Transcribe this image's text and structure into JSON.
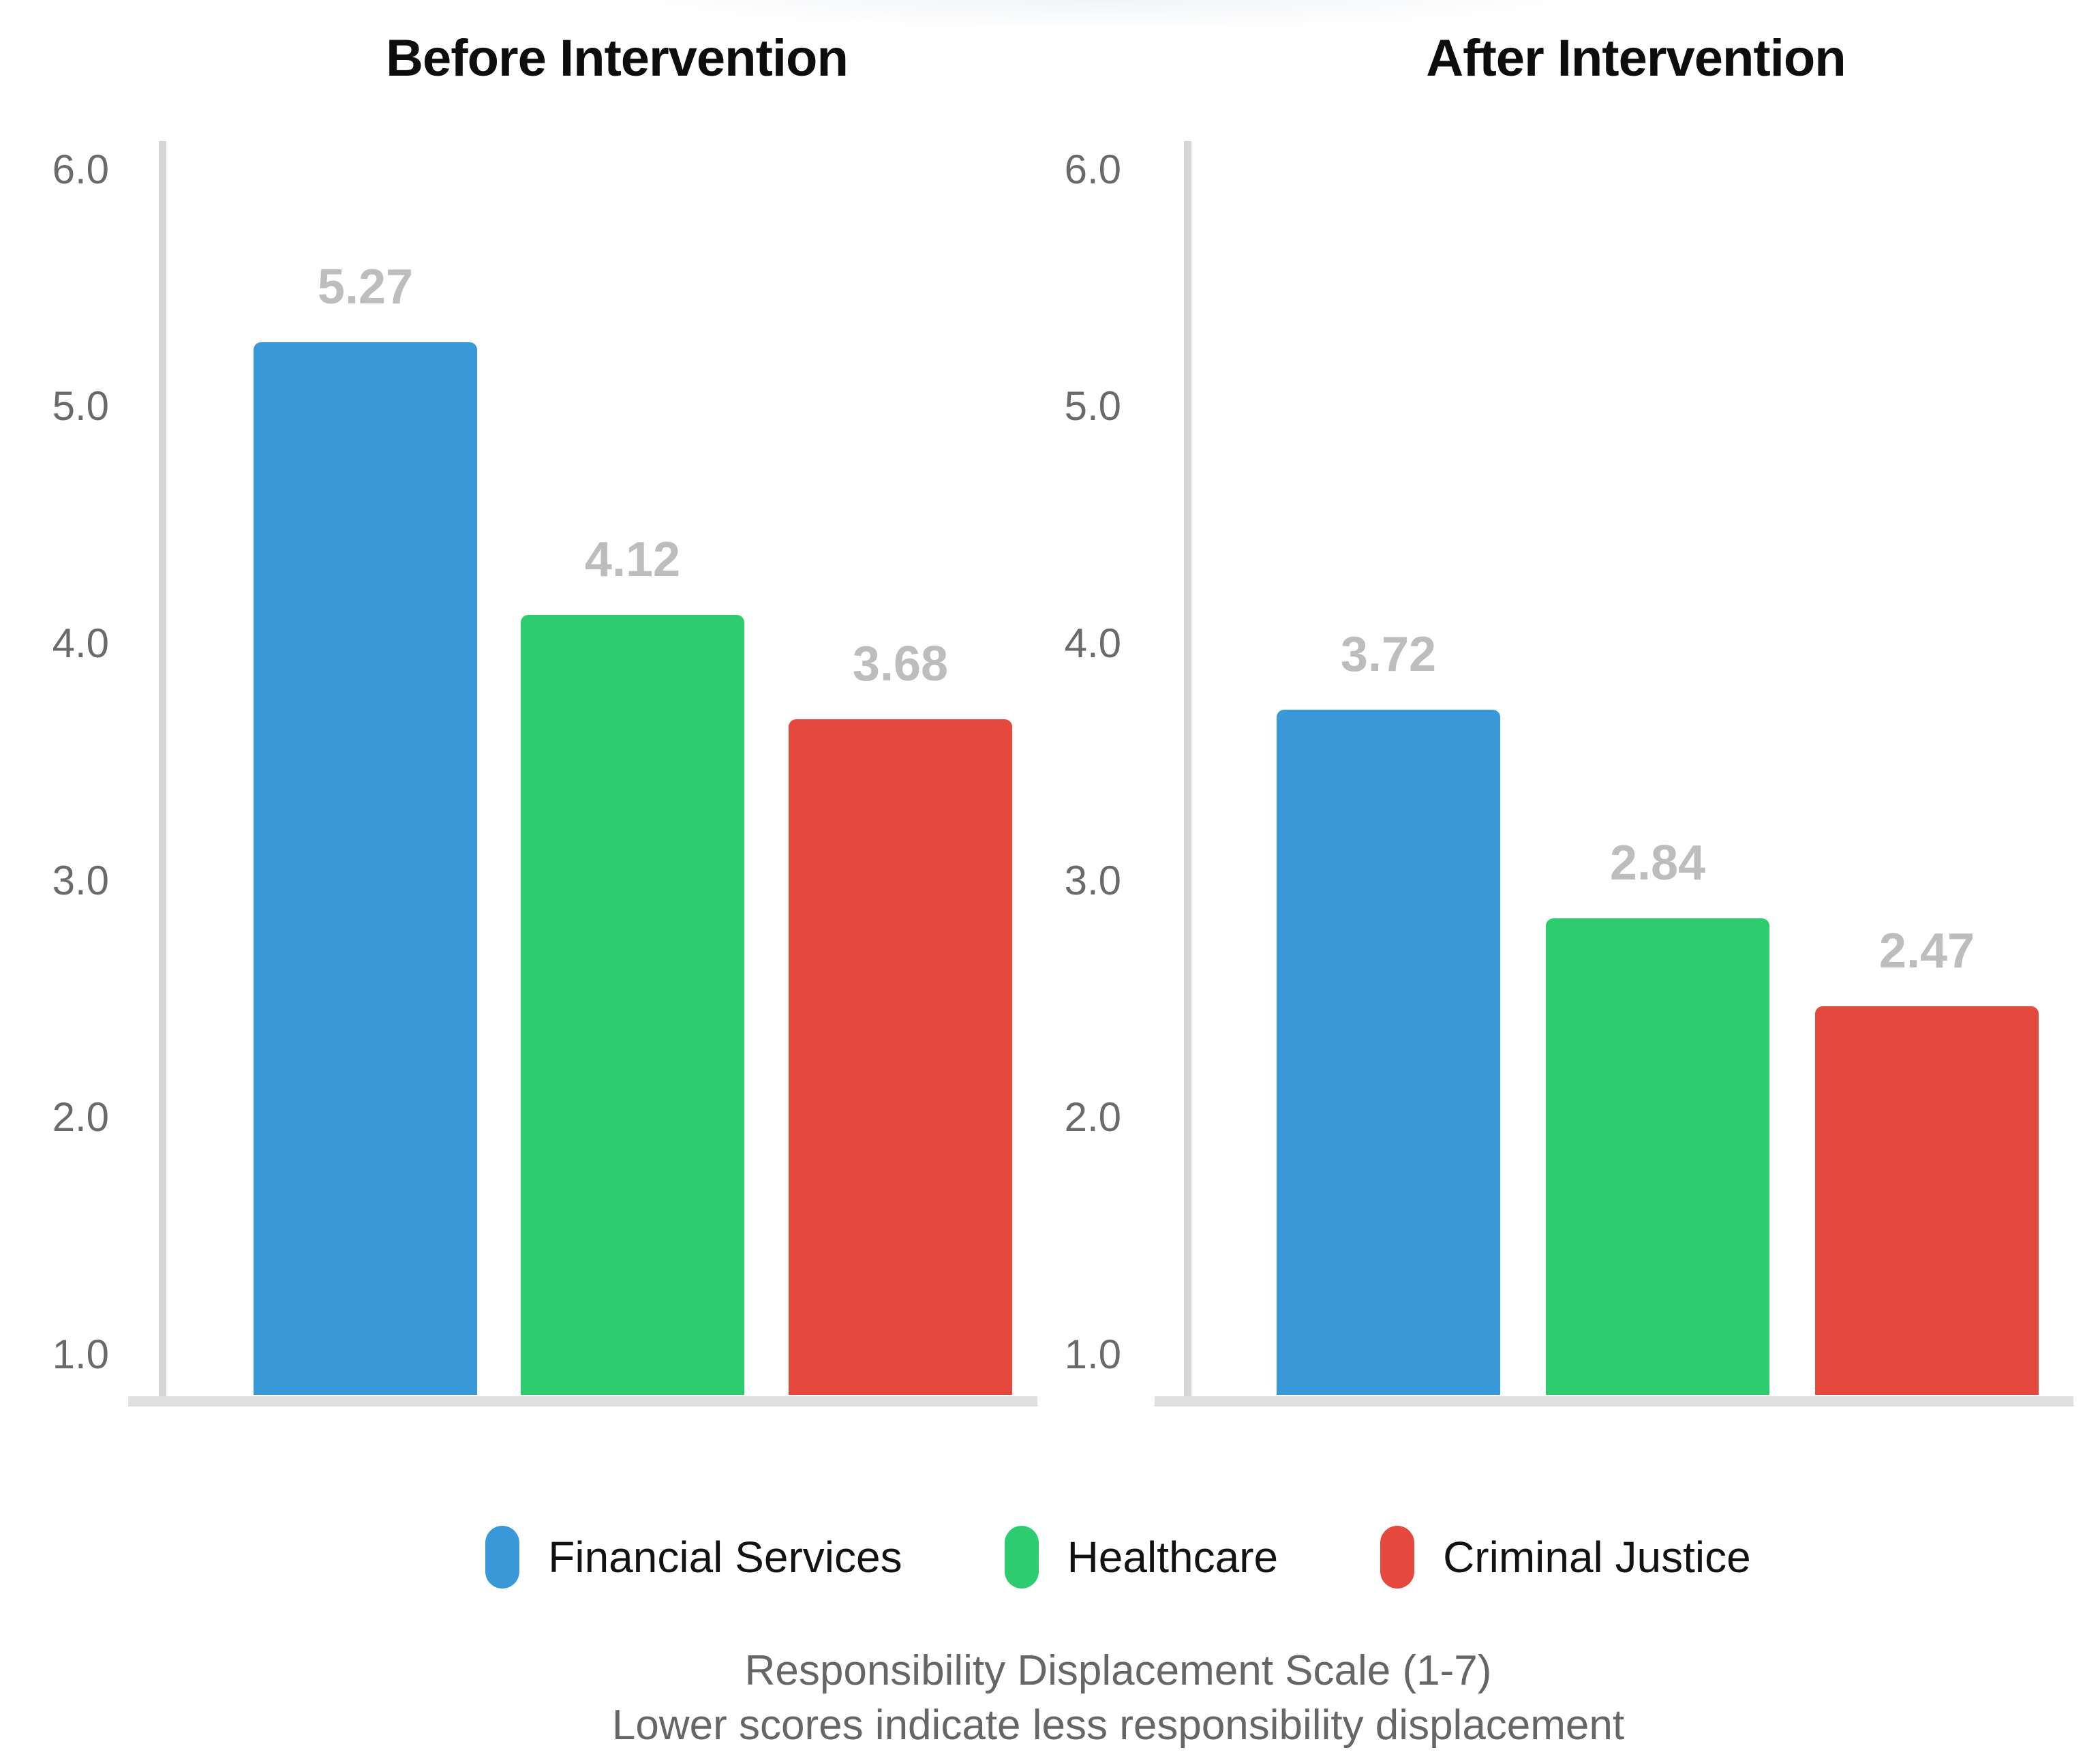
{
  "chart_data": [
    {
      "type": "bar",
      "title": "Before Intervention",
      "categories": [
        "Financial Services",
        "Healthcare",
        "Criminal Justice"
      ],
      "values": [
        5.27,
        4.12,
        3.68
      ],
      "value_labels": [
        "5.27",
        "4.12",
        "3.68"
      ],
      "bar_colors": [
        "#3898d8",
        "#2ecc71",
        "#e5483c"
      ],
      "ylabel": "",
      "xlabel": "",
      "ytick_labels": [
        "6.0",
        "5.0",
        "4.0",
        "3.0",
        "2.0",
        "1.0"
      ],
      "ytick_values": [
        6.0,
        5.0,
        4.0,
        3.0,
        2.0,
        1.0
      ],
      "ylim": [
        0.83,
        6.12
      ],
      "grid": false,
      "legend_position": "none"
    },
    {
      "type": "bar",
      "title": "After Intervention",
      "categories": [
        "Financial Services",
        "Healthcare",
        "Criminal Justice"
      ],
      "values": [
        3.72,
        2.84,
        2.47
      ],
      "value_labels": [
        "3.72",
        "2.84",
        "2.47"
      ],
      "bar_colors": [
        "#3898d8",
        "#2ecc71",
        "#e5483c"
      ],
      "ylabel": "",
      "xlabel": "",
      "ytick_labels": [
        "6.0",
        "5.0",
        "4.0",
        "3.0",
        "2.0",
        "1.0"
      ],
      "ytick_values": [
        6.0,
        5.0,
        4.0,
        3.0,
        2.0,
        1.0
      ],
      "ylim": [
        0.83,
        6.12
      ],
      "grid": false,
      "legend_position": "none"
    }
  ],
  "legend": {
    "items": [
      {
        "label": "Financial Services",
        "color": "#3898d8"
      },
      {
        "label": "Healthcare",
        "color": "#2ecc71"
      },
      {
        "label": "Criminal Justice",
        "color": "#e5483c"
      }
    ]
  },
  "caption": {
    "line1": "Responsibility Displacement Scale (1-7)",
    "line2": "Lower scores indicate less responsibility displacement"
  },
  "colors": {
    "axis_line": "#d6d6d6",
    "baseline": "#e0e0e0",
    "tick_text": "#6a6a6a",
    "value_label_text": "#bdbdbd",
    "title_text": "#0d0d0d",
    "caption_text": "#666666",
    "background": "#ffffff"
  }
}
